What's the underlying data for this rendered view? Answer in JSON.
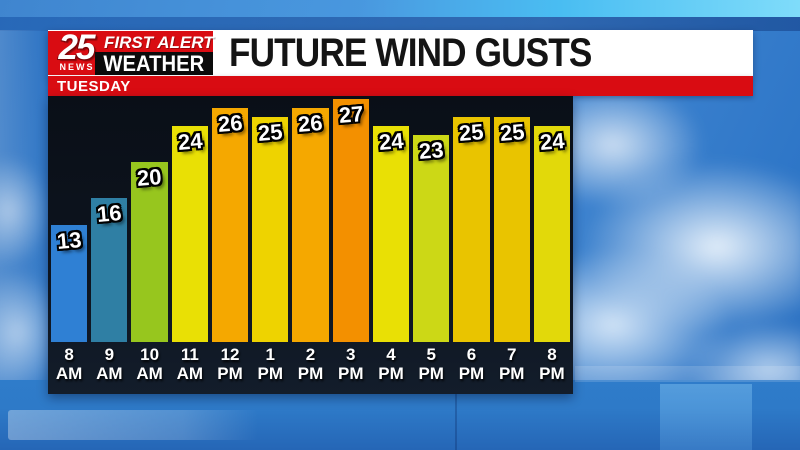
{
  "header": {
    "logo": {
      "channel_number": "25",
      "channel_name": "NEWS",
      "brand_top": "FIRST ALERT",
      "brand_bottom": "WEATHER"
    },
    "title": "FUTURE WIND GUSTS"
  },
  "banner": {
    "day_label": "TUESDAY"
  },
  "chart_data": {
    "type": "bar",
    "title": "FUTURE WIND GUSTS",
    "subtitle": "TUESDAY",
    "categories": [
      "8 AM",
      "9 AM",
      "10 AM",
      "11 AM",
      "12 PM",
      "1 PM",
      "2 PM",
      "3 PM",
      "4 PM",
      "5 PM",
      "6 PM",
      "7 PM",
      "8 PM"
    ],
    "values": [
      13,
      16,
      20,
      24,
      26,
      25,
      26,
      27,
      24,
      23,
      25,
      25,
      24
    ],
    "bar_colors": [
      "#2f80d4",
      "#2f7fa4",
      "#97c61e",
      "#e9e005",
      "#f5a800",
      "#eed300",
      "#f5a800",
      "#f39000",
      "#e9e005",
      "#ccd816",
      "#e9c400",
      "#e9c400",
      "#e2d90a"
    ],
    "value_label_color": "#ffffff",
    "xlabel": "",
    "ylabel": "",
    "ylim": [
      0,
      27.5
    ],
    "grid": false,
    "legend": false,
    "panel_background": "#0c131d"
  },
  "colors": {
    "accent_red": "#d90c12",
    "header_background": "#ffffff",
    "title_text": "#141414",
    "sky_blue": "#3b80cc"
  }
}
